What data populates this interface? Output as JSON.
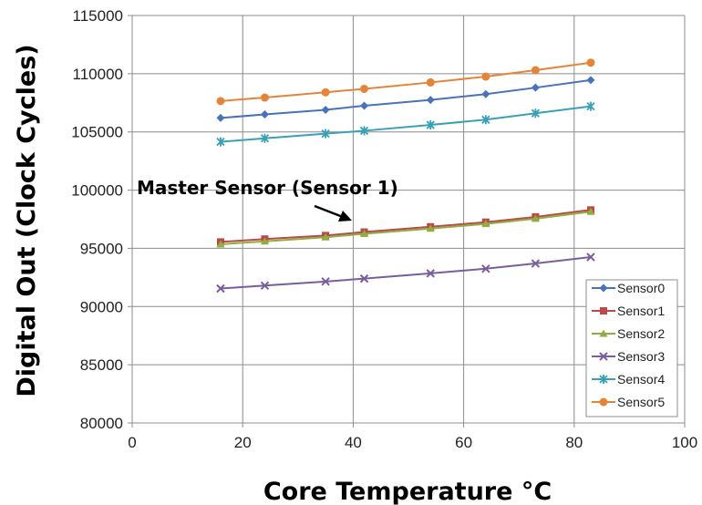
{
  "chart_data": {
    "type": "line",
    "title": "",
    "xlabel": "Core Temperature °C",
    "ylabel": "Digital Out (Clock Cycles)",
    "xlim": [
      0,
      100
    ],
    "ylim": [
      80000,
      115000
    ],
    "xticks": [
      0,
      20,
      40,
      60,
      80,
      100
    ],
    "yticks": [
      80000,
      85000,
      90000,
      95000,
      100000,
      105000,
      110000,
      115000
    ],
    "grid": true,
    "legend_position": "bottom-right",
    "annotation": "Master Sensor (Sensor 1)",
    "x": [
      16,
      24,
      35,
      42,
      54,
      64,
      73,
      83
    ],
    "series": [
      {
        "name": "Sensor0",
        "color": "#4a72b8",
        "marker": "diamond",
        "values": [
          106200,
          106500,
          106900,
          107250,
          107750,
          108250,
          108800,
          109450
        ]
      },
      {
        "name": "Sensor1",
        "color": "#b94a48",
        "marker": "square",
        "values": [
          95550,
          95800,
          96100,
          96400,
          96850,
          97250,
          97700,
          98300
        ]
      },
      {
        "name": "Sensor2",
        "color": "#8fae3f",
        "marker": "triangle",
        "values": [
          95350,
          95600,
          95950,
          96250,
          96700,
          97100,
          97550,
          98150
        ]
      },
      {
        "name": "Sensor3",
        "color": "#7a5e9c",
        "marker": "x",
        "values": [
          91550,
          91800,
          92150,
          92400,
          92850,
          93250,
          93700,
          94250
        ]
      },
      {
        "name": "Sensor4",
        "color": "#3aa0b5",
        "marker": "star",
        "values": [
          104150,
          104450,
          104850,
          105100,
          105600,
          106050,
          106600,
          107200
        ]
      },
      {
        "name": "Sensor5",
        "color": "#e38439",
        "marker": "circle",
        "values": [
          107650,
          107950,
          108400,
          108700,
          109250,
          109750,
          110300,
          110950
        ]
      }
    ]
  }
}
